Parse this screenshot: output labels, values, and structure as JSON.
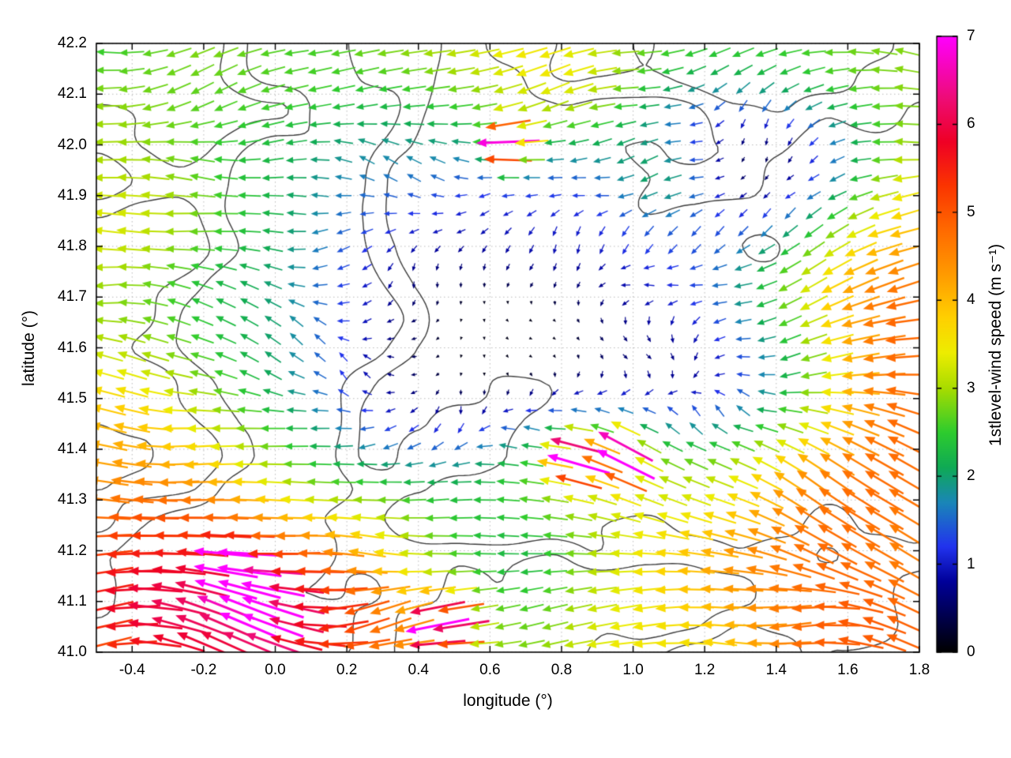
{
  "figure": {
    "background": "#ffffff"
  },
  "chart_data": {
    "type": "quiver",
    "title": "",
    "xlabel": "longitude (°)",
    "ylabel": "latitude (°)",
    "xlim": [
      -0.5,
      1.8
    ],
    "ylim": [
      41.0,
      42.2
    ],
    "grid": true,
    "xticks": [
      {
        "v": -0.4,
        "label": "-0.4"
      },
      {
        "v": -0.2,
        "label": "-0.2"
      },
      {
        "v": 0.0,
        "label": "0.0"
      },
      {
        "v": 0.2,
        "label": "0.2"
      },
      {
        "v": 0.4,
        "label": "0.4"
      },
      {
        "v": 0.6,
        "label": "0.6"
      },
      {
        "v": 0.8,
        "label": "0.8"
      },
      {
        "v": 1.0,
        "label": "1.0"
      },
      {
        "v": 1.2,
        "label": "1.2"
      },
      {
        "v": 1.4,
        "label": "1.4"
      },
      {
        "v": 1.6,
        "label": "1.6"
      },
      {
        "v": 1.8,
        "label": "1.8"
      }
    ],
    "yticks": [
      {
        "v": 41.0,
        "label": "41.0"
      },
      {
        "v": 41.1,
        "label": "41.1"
      },
      {
        "v": 41.2,
        "label": "41.2"
      },
      {
        "v": 41.3,
        "label": "41.3"
      },
      {
        "v": 41.4,
        "label": "41.4"
      },
      {
        "v": 41.5,
        "label": "41.5"
      },
      {
        "v": 41.6,
        "label": "41.6"
      },
      {
        "v": 41.7,
        "label": "41.7"
      },
      {
        "v": 41.8,
        "label": "41.8"
      },
      {
        "v": 41.9,
        "label": "41.9"
      },
      {
        "v": 42.0,
        "label": "42.0"
      },
      {
        "v": 42.1,
        "label": "42.1"
      },
      {
        "v": 42.2,
        "label": "42.2"
      }
    ],
    "colorbar": {
      "label": "1stlevel-wind speed (m s⁻¹)",
      "min": 0,
      "max": 7,
      "ticks": [
        {
          "v": 0,
          "label": "0"
        },
        {
          "v": 1,
          "label": "1"
        },
        {
          "v": 2,
          "label": "2"
        },
        {
          "v": 3,
          "label": "3"
        },
        {
          "v": 4,
          "label": "4"
        },
        {
          "v": 5,
          "label": "5"
        },
        {
          "v": 6,
          "label": "6"
        },
        {
          "v": 7,
          "label": "7"
        }
      ],
      "stops": [
        [
          0.0,
          "#000000"
        ],
        [
          0.8,
          "#000099"
        ],
        [
          1.2,
          "#2233ee"
        ],
        [
          1.7,
          "#1a86b8"
        ],
        [
          2.1,
          "#0faa55"
        ],
        [
          2.5,
          "#2ecc2e"
        ],
        [
          3.0,
          "#a8dc00"
        ],
        [
          3.4,
          "#eded00"
        ],
        [
          3.8,
          "#ffd000"
        ],
        [
          4.3,
          "#ff9a00"
        ],
        [
          4.8,
          "#ff6a00"
        ],
        [
          5.3,
          "#fb3500"
        ],
        [
          5.8,
          "#ef0025"
        ],
        [
          6.3,
          "#ee0c77"
        ],
        [
          7.0,
          "#ff00ff"
        ]
      ]
    },
    "vector_grid": {
      "nx": 35,
      "ny": 34
    },
    "flow": {
      "predominant_direction": "westward (arrow heads point toward negative longitude)",
      "base_direction_deg": 180,
      "direction_noise_deg": 42,
      "calm_extra_noise_deg": 115
    },
    "speed_field": {
      "base": 2.6,
      "noise_amp": 0.9,
      "bumps": [
        {
          "lon": 0.55,
          "lat": 41.72,
          "sx": 0.5,
          "sy": 0.24,
          "amp": -2.3
        },
        {
          "lon": 0.45,
          "lat": 41.5,
          "sx": 0.35,
          "sy": 0.14,
          "amp": -1.2
        },
        {
          "lon": 1.0,
          "lat": 41.52,
          "sx": 0.22,
          "sy": 0.12,
          "amp": -1.2
        },
        {
          "lon": 1.45,
          "lat": 41.56,
          "sx": 0.22,
          "sy": 0.13,
          "amp": -1.6
        },
        {
          "lon": 1.45,
          "lat": 41.97,
          "sx": 0.18,
          "sy": 0.1,
          "amp": -1.5
        },
        {
          "lon": 1.15,
          "lat": 42.06,
          "sx": 0.15,
          "sy": 0.1,
          "amp": -1.3
        },
        {
          "lon": 0.62,
          "lat": 41.12,
          "sx": 0.28,
          "sy": 0.14,
          "amp": -1.1
        },
        {
          "lon": -0.25,
          "lat": 41.12,
          "sx": 0.42,
          "sy": 0.17,
          "amp": 2.7
        },
        {
          "lon": 0.25,
          "lat": 41.06,
          "sx": 0.35,
          "sy": 0.12,
          "amp": 1.6
        },
        {
          "lon": 1.72,
          "lat": 41.08,
          "sx": 0.5,
          "sy": 0.28,
          "amp": 2.1
        },
        {
          "lon": 1.65,
          "lat": 41.7,
          "sx": 0.26,
          "sy": 0.12,
          "amp": 1.9
        },
        {
          "lon": 1.7,
          "lat": 41.48,
          "sx": 0.22,
          "sy": 0.14,
          "amp": 1.6
        },
        {
          "lon": 0.82,
          "lat": 41.41,
          "sx": 0.22,
          "sy": 0.1,
          "amp": 1.5
        },
        {
          "lon": -0.32,
          "lat": 41.87,
          "sx": 0.35,
          "sy": 0.1,
          "amp": 0.9
        },
        {
          "lon": -0.45,
          "lat": 41.42,
          "sx": 0.22,
          "sy": 0.18,
          "amp": 1.1
        },
        {
          "lon": 0.9,
          "lat": 42.12,
          "sx": 0.28,
          "sy": 0.09,
          "amp": 1.2
        },
        {
          "lon": 1.1,
          "lat": 41.94,
          "sx": 0.12,
          "sy": 0.07,
          "amp": 1.4
        }
      ],
      "hotspots": [
        {
          "lon": 0.66,
          "lat": 42.0,
          "sigma": 0.035,
          "amp": 5.0
        },
        {
          "lon": 0.84,
          "lat": 41.38,
          "sigma": 0.035,
          "amp": 5.0
        },
        {
          "lon": 0.97,
          "lat": 41.385,
          "sigma": 0.035,
          "amp": 5.0
        },
        {
          "lon": -0.1,
          "lat": 41.155,
          "sigma": 0.035,
          "amp": 5.0
        },
        {
          "lon": -0.03,
          "lat": 41.09,
          "sigma": 0.035,
          "amp": 5.0
        },
        {
          "lon": 0.48,
          "lat": 41.055,
          "sigma": 0.035,
          "amp": 5.0
        }
      ]
    },
    "contour_lines": {
      "meaning": "map/terrain outline contours overlaid on vector field",
      "levels": [
        0.47,
        0.59
      ],
      "color": "#3c3c3c"
    },
    "style": {
      "plot_border": "#000000",
      "grid_color": "#bbbbbb",
      "background": "#ffffff"
    },
    "seed": 7
  }
}
